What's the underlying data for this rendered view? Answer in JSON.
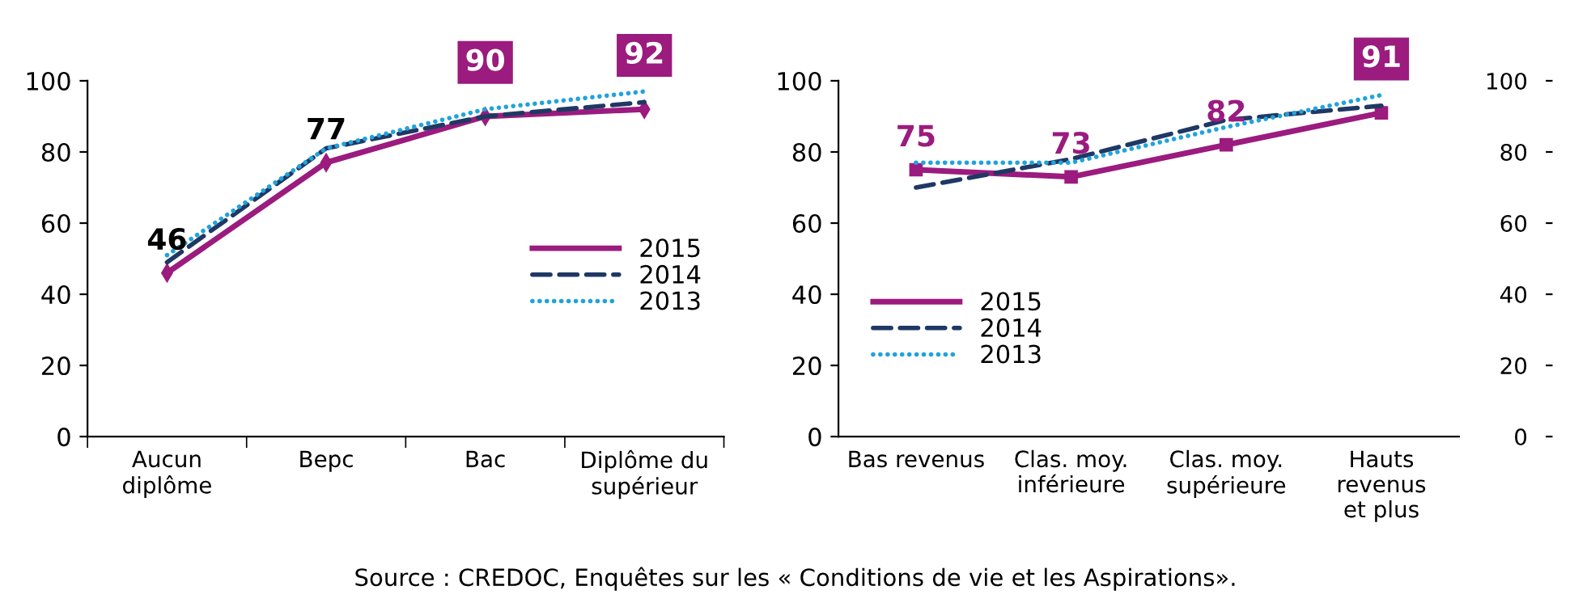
{
  "chart_data": [
    {
      "type": "line",
      "categories": [
        "Aucun\ndiplôme",
        "Bepc",
        "Bac",
        "Diplôme du\nsupérieur"
      ],
      "ylim": [
        0,
        100
      ],
      "yticks": [
        0,
        20,
        40,
        60,
        80,
        100
      ],
      "grid": false,
      "legend": "center right",
      "series": [
        {
          "name": "2015",
          "color": "#9b1b7e",
          "values": [
            46,
            77,
            90,
            92
          ],
          "marker": "diamond",
          "line_style": "solid",
          "value_labels": [
            "46",
            "77",
            "90",
            "92"
          ]
        },
        {
          "name": "2014",
          "color": "#1f3864",
          "values": [
            49,
            81,
            90,
            94
          ],
          "marker": "none",
          "line_style": "dashed"
        },
        {
          "name": "2013",
          "color": "#1fa3dc",
          "values": [
            51,
            81,
            92,
            97
          ],
          "marker": "none",
          "line_style": "dotted"
        }
      ]
    },
    {
      "type": "line",
      "categories": [
        "Bas revenus",
        "Clas. moy.\ninférieure",
        "Clas. moy.\nsupérieure",
        "Hauts\nrevenus\net plus"
      ],
      "ylim": [
        0,
        100
      ],
      "yticks": [
        0,
        20,
        40,
        60,
        80,
        100
      ],
      "y2lim": [
        0,
        100
      ],
      "y2ticks": [
        0,
        20,
        40,
        60,
        80,
        100
      ],
      "grid": false,
      "legend": "center left",
      "series": [
        {
          "name": "2015",
          "color": "#9b1b7e",
          "values": [
            75,
            73,
            82,
            91
          ],
          "marker": "square",
          "line_style": "solid",
          "value_labels": [
            "75",
            "73",
            "82",
            "91"
          ]
        },
        {
          "name": "2014",
          "color": "#1f3864",
          "values": [
            70,
            78,
            89,
            93
          ],
          "marker": "none",
          "line_style": "dashed"
        },
        {
          "name": "2013",
          "color": "#1fa3dc",
          "values": [
            77,
            77,
            87,
            96
          ],
          "marker": "none",
          "line_style": "dotted"
        }
      ],
      "annotations": [
        "Source : CREDOC, Enquêtes sur les « Conditions de vie et les Aspirations»."
      ]
    }
  ]
}
